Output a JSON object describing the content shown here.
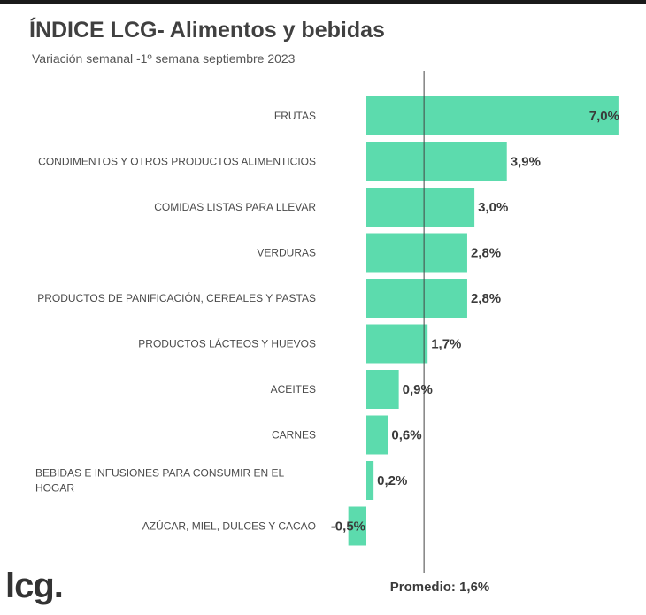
{
  "header": {
    "title": "ÍNDICE LCG- Alimentos y bebidas",
    "subtitle": "Variación semanal -1º semana septiembre 2023"
  },
  "brand": {
    "logo_text": "lcg."
  },
  "chart_data": {
    "type": "bar",
    "orientation": "horizontal",
    "title": "ÍNDICE LCG- Alimentos y bebidas",
    "subtitle": "Variación semanal -1º semana septiembre 2023",
    "categories": [
      [
        "FRUTAS"
      ],
      [
        "CONDIMENTOS Y OTROS PRODUCTOS ALIMENTICIOS"
      ],
      [
        "COMIDAS LISTAS PARA LLEVAR"
      ],
      [
        "VERDURAS"
      ],
      [
        "PRODUCTOS DE PANIFICACIÓN, CEREALES Y PASTAS"
      ],
      [
        "PRODUCTOS LÁCTEOS Y HUEVOS"
      ],
      [
        "ACEITES"
      ],
      [
        "CARNES"
      ],
      [
        "BEBIDAS E INFUSIONES PARA CONSUMIR EN EL",
        "HOGAR"
      ],
      [
        "AZÚCAR, MIEL, DULCES Y CACAO"
      ]
    ],
    "values": [
      7.0,
      3.9,
      3.0,
      2.8,
      2.8,
      1.7,
      0.9,
      0.6,
      0.2,
      -0.5
    ],
    "value_labels": [
      "7,0%",
      "3,9%",
      "3,0%",
      "2,8%",
      "2,8%",
      "1,7%",
      "0,9%",
      "0,6%",
      "0,2%",
      "-0,5%"
    ],
    "reference_line": {
      "value": 1.6,
      "label": "Promedio: 1,6%"
    },
    "bar_color": "#5cdbad",
    "grid": false,
    "legend": "none"
  }
}
